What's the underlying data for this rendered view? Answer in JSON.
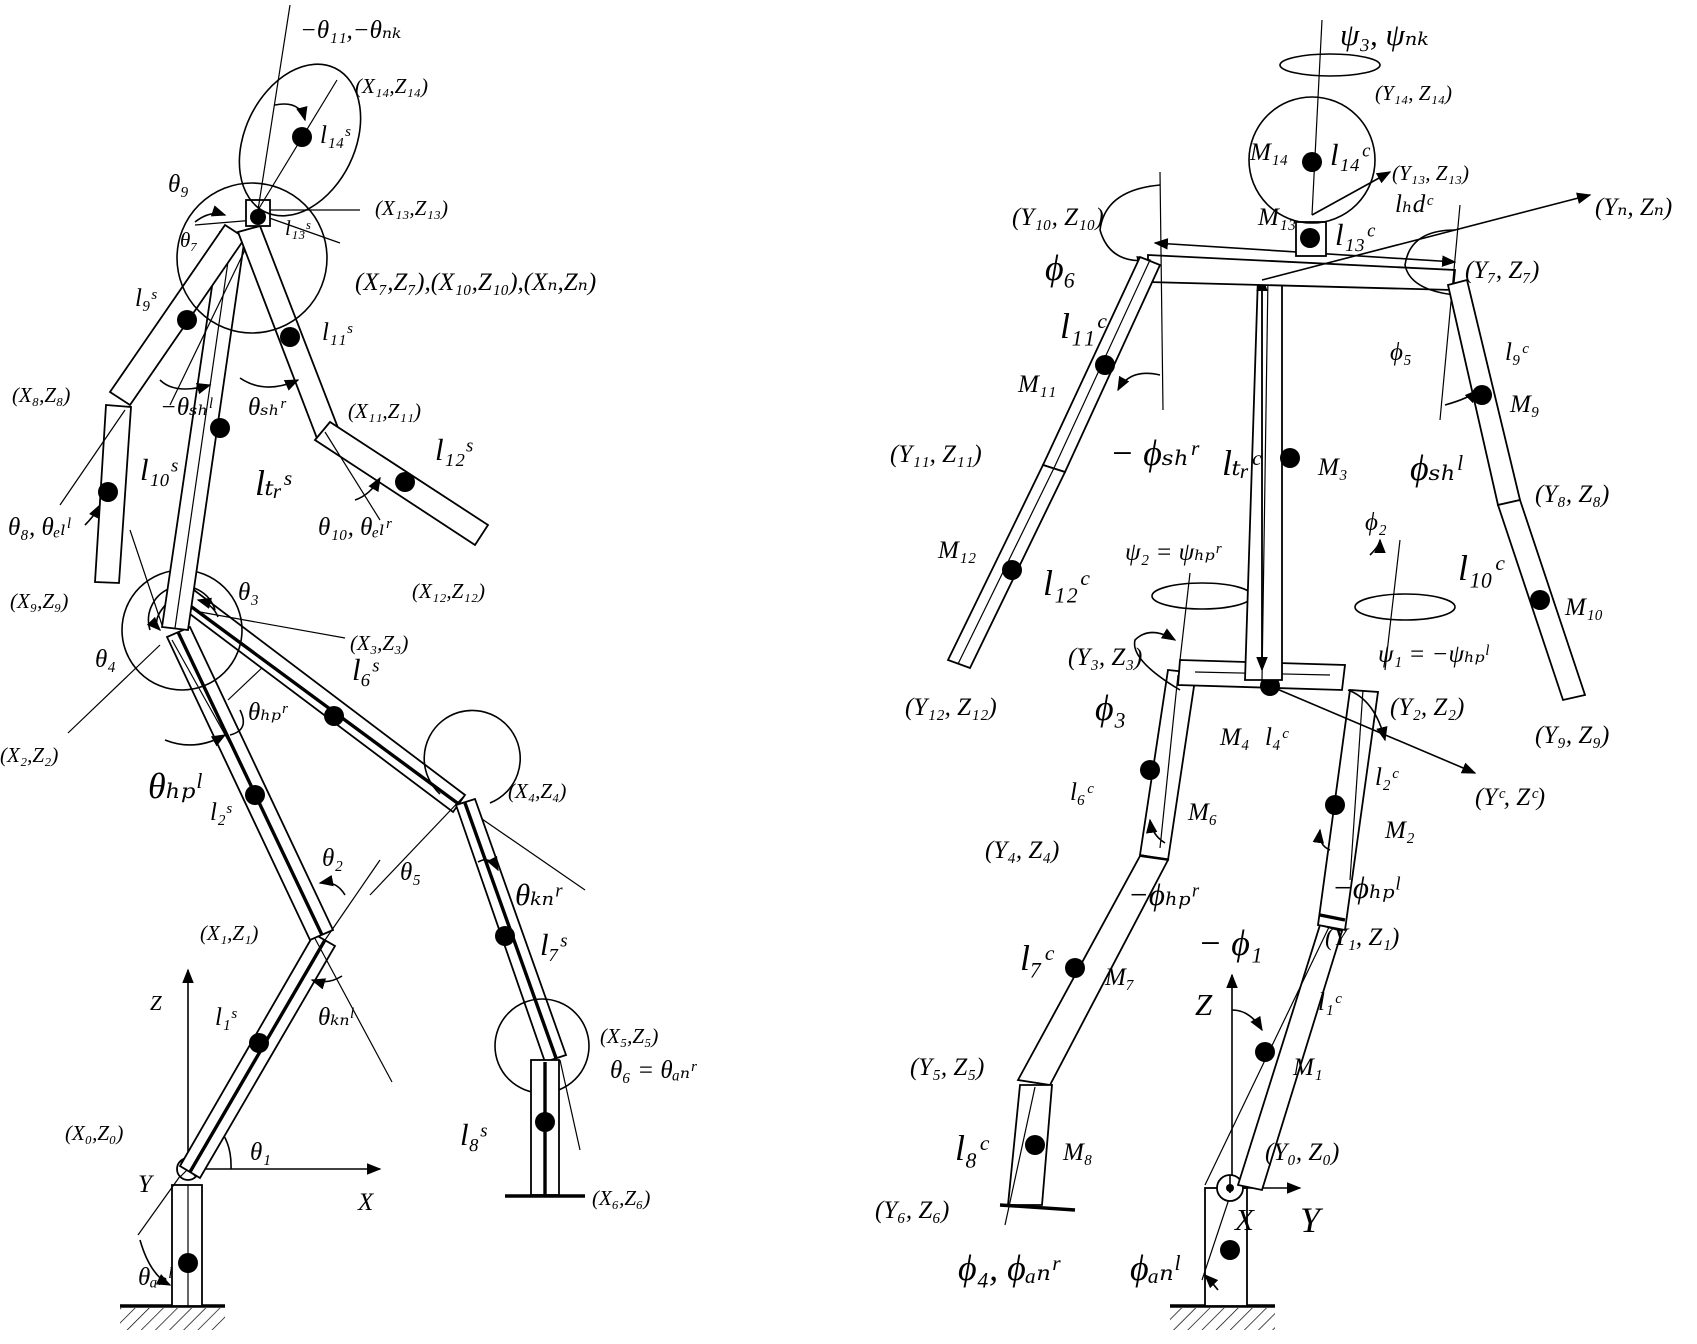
{
  "sagittal": {
    "coords": {
      "c0": "(X₀,Z₀)",
      "c1": "(X₁,Z₁)",
      "c2": "(X₂,Z₂)",
      "c3": "(X₃,Z₃)",
      "c4": "(X₄,Z₄)",
      "c5": "(X₅,Z₅)",
      "c6": "(X₆,Z₆)",
      "c8": "(X₈,Z₈)",
      "c9": "(X₉,Z₉)",
      "c11": "(X₁₁,Z₁₁)",
      "c12": "(X₁₂,Z₁₂)",
      "c13": "(X₁₃,Z₁₃)",
      "c14": "(X₁₄,Z₁₄)",
      "c7": "(X₇,Z₇),(X₁₀,Z₁₀),(Xₙ,Zₙ)"
    },
    "axes": {
      "x": "X",
      "y": "Y",
      "z": "Z"
    },
    "lengths": {
      "l1": "l₁ˢ",
      "l2": "l₂ˢ",
      "l6": "l₆ˢ",
      "l7": "l₇ˢ",
      "l8": "l₈ˢ",
      "l9": "l₉ˢ",
      "l10": "l₁₀ˢ",
      "l11": "l₁₁ˢ",
      "l12": "l₁₂ˢ",
      "l13": "l₁₃ˢ",
      "l14": "l₁₄ˢ",
      "ltr": "lₜᵣˢ"
    },
    "angles": {
      "t1": "θ₁",
      "t2": "θ₂",
      "t3": "θ₃",
      "t4": "θ₄",
      "t5": "θ₅",
      "t6": "θ₆ = θₐₙʳ",
      "t7": "θ₇",
      "t8": "θ₈, θₑₗˡ",
      "t9": "θ₉",
      "t10": "θ₁₀, θₑₗʳ",
      "t11": "−θ₁₁,−θₙₖ",
      "shl": "−θₛₕˡ",
      "shr": "θₛₕʳ",
      "hpl": "θₕₚˡ",
      "hpr": "θₕₚʳ",
      "knl": "θₖₙˡ",
      "knr": "θₖₙʳ",
      "anl": "θₐₙˡ"
    }
  },
  "coronal": {
    "coords": {
      "c0": "(Y₀, Z₀)",
      "c1": "(Y₁, Z₁)",
      "c2": "(Y₂, Z₂)",
      "c3": "(Y₃, Z₃)",
      "c4": "(Y₄, Z₄)",
      "c5": "(Y₅, Z₅)",
      "c6": "(Y₆, Z₆)",
      "c7": "(Y₇, Z₇)",
      "c8": "(Y₈, Z₈)",
      "c9": "(Y₉, Z₉)",
      "c10": "(Y₁₀, Z₁₀)",
      "c11": "(Y₁₁, Z₁₁)",
      "c12": "(Y₁₂, Z₁₂)",
      "c13": "(Y₁₃, Z₁₃)",
      "c14": "(Y₁₄, Z₁₄)",
      "cn": "(Yₙ, Zₙ)",
      "cc": "(Yᶜ, Zᶜ)"
    },
    "axes": {
      "x": "X",
      "y": "Y",
      "z": "Z"
    },
    "masses": {
      "m1": "M₁",
      "m2": "M₂",
      "m3": "M₃",
      "m4": "M₄",
      "m6": "M₆",
      "m7": "M₇",
      "m8": "M₈",
      "m9": "M₉",
      "m10": "M₁₀",
      "m11": "M₁₁",
      "m12": "M₁₂",
      "m13": "M₁₃",
      "m14": "M₁₄"
    },
    "lengths": {
      "l1": "l₁ᶜ",
      "l2": "l₂ᶜ",
      "l4": "l₄ᶜ",
      "l6": "l₆ᶜ",
      "l7": "l₇ᶜ",
      "l8": "l₈ᶜ",
      "l9": "l₉ᶜ",
      "l10": "l₁₀ᶜ",
      "l11": "l₁₁ᶜ",
      "l12": "l₁₂ᶜ",
      "l13": "l₁₃ᶜ",
      "l14": "l₁₄ᶜ",
      "ltr": "lₜᵣᶜ",
      "lhd": "lₕdᶜ"
    },
    "angles": {
      "p1": "− ϕ₁",
      "p2": "ϕ₂",
      "p3": "ϕ₃",
      "p4": "ϕ₄, ϕₐₙʳ",
      "p5": "ϕ₅",
      "p6": "ϕ₆",
      "shl": "ϕₛₕˡ",
      "shr": "− ϕₛₕʳ",
      "hpl": "−ϕₕₚˡ",
      "hpr": "−ϕₕₚʳ",
      "anl": "ϕₐₙˡ",
      "psi1": "ψ₁ = −ψₕₚˡ",
      "psi2": "ψ₂ = ψₕₚʳ",
      "psi3": "ψ₃, ψₙₖ"
    }
  }
}
